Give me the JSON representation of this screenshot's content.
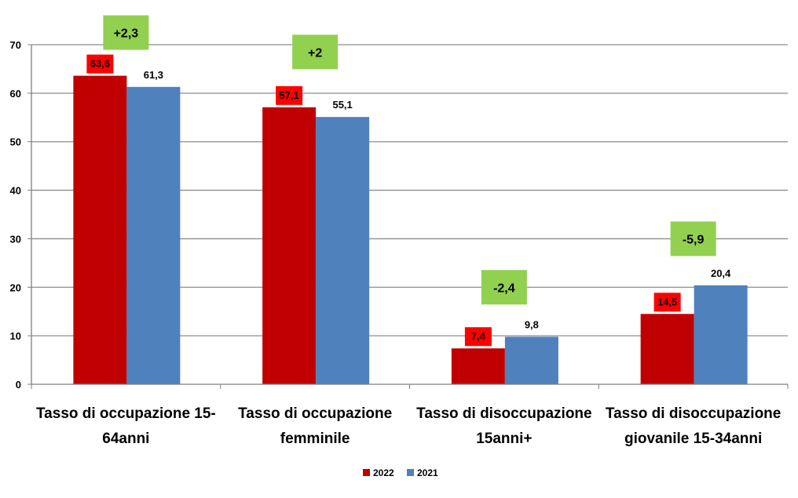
{
  "chart_data": {
    "type": "bar",
    "categories": [
      [
        "Tasso di occupazione 15-",
        "64anni"
      ],
      [
        "Tasso di occupazione",
        "femminile"
      ],
      [
        "Tasso di disoccupazione",
        "15anni+"
      ],
      [
        "Tasso di disoccupazione",
        "giovanile 15-34anni"
      ]
    ],
    "series": [
      {
        "name": "2022",
        "color": "#C00000",
        "values": [
          63.6,
          57.1,
          7.4,
          14.5
        ],
        "labels": [
          "63,6",
          "57,1",
          "7,4",
          "14,5"
        ],
        "label_bg": "#FF0000"
      },
      {
        "name": "2021",
        "color": "#4F81BD",
        "values": [
          61.3,
          55.1,
          9.8,
          20.4
        ],
        "labels": [
          "61,3",
          "55,1",
          "9,8",
          "20,4"
        ]
      }
    ],
    "differences": [
      {
        "label": "+2,3",
        "level": 72.5
      },
      {
        "label": "+2",
        "level": 68.5
      },
      {
        "label": "-2,4",
        "level": 20
      },
      {
        "label": "-5,9",
        "level": 30
      }
    ],
    "difference_bg": "#92D050",
    "ylim": [
      0,
      70
    ],
    "yticks": [
      "0",
      "10",
      "20",
      "30",
      "40",
      "50",
      "60",
      "70"
    ],
    "grid": true,
    "legend_position": "bottom",
    "legend": [
      "2022",
      "2021"
    ]
  }
}
